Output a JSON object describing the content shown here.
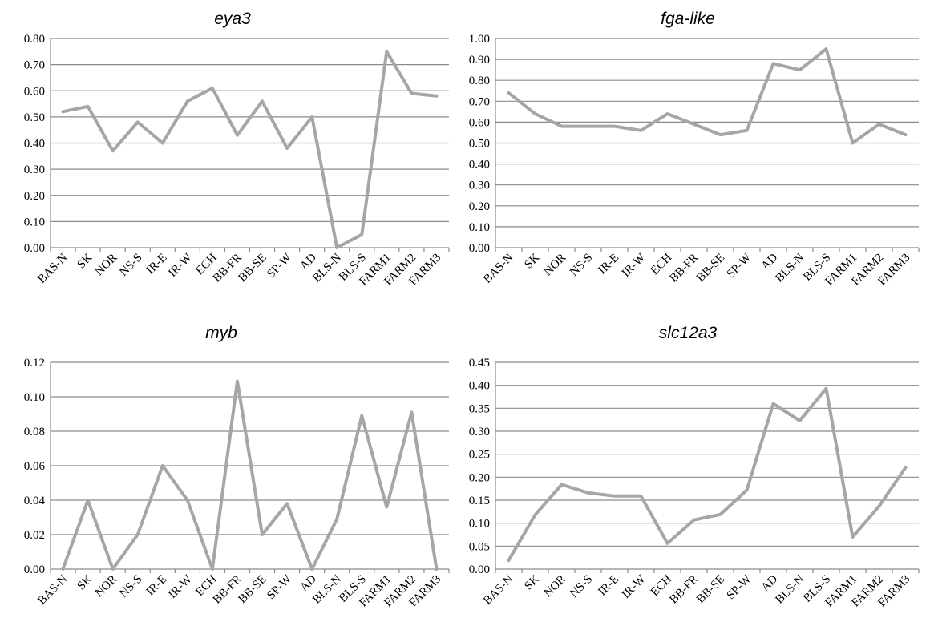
{
  "categories": [
    "BAS-N",
    "SK",
    "NOR",
    "NS-S",
    "IR-E",
    "IR-W",
    "ECH",
    "BB-FR",
    "BB-SE",
    "SP-W",
    "AD",
    "BLS-N",
    "BLS-S",
    "FARM1",
    "FARM2",
    "FARM3"
  ],
  "line_color": "#a6a6a6",
  "chart_data": [
    {
      "type": "line",
      "title": "eya3",
      "categories": [
        "BAS-N",
        "SK",
        "NOR",
        "NS-S",
        "IR-E",
        "IR-W",
        "ECH",
        "BB-FR",
        "BB-SE",
        "SP-W",
        "AD",
        "BLS-N",
        "BLS-S",
        "FARM1",
        "FARM2",
        "FARM3"
      ],
      "values": [
        0.52,
        0.54,
        0.37,
        0.48,
        0.4,
        0.56,
        0.61,
        0.43,
        0.56,
        0.38,
        0.5,
        0.0,
        0.05,
        0.75,
        0.59,
        0.58
      ],
      "ylim": [
        0,
        0.8
      ],
      "yticks": [
        "0.00",
        "0.10",
        "0.20",
        "0.30",
        "0.40",
        "0.50",
        "0.60",
        "0.70",
        "0.80"
      ],
      "grid": true
    },
    {
      "type": "line",
      "title": "fga-like",
      "categories": [
        "BAS-N",
        "SK",
        "NOR",
        "NS-S",
        "IR-E",
        "IR-W",
        "ECH",
        "BB-FR",
        "BB-SE",
        "SP-W",
        "AD",
        "BLS-N",
        "BLS-S",
        "FARM1",
        "FARM2",
        "FARM3"
      ],
      "values": [
        0.74,
        0.64,
        0.58,
        0.58,
        0.58,
        0.56,
        0.64,
        0.59,
        0.54,
        0.56,
        0.88,
        0.85,
        0.95,
        0.5,
        0.59,
        0.54
      ],
      "ylim": [
        0,
        1.0
      ],
      "yticks": [
        "0.00",
        "0.10",
        "0.20",
        "0.30",
        "0.40",
        "0.50",
        "0.60",
        "0.70",
        "0.80",
        "0.90",
        "1.00"
      ],
      "grid": true
    },
    {
      "type": "line",
      "title": "myb",
      "categories": [
        "BAS-N",
        "SK",
        "NOR",
        "NS-S",
        "IR-E",
        "IR-W",
        "ECH",
        "BB-FR",
        "BB-SE",
        "SP-W",
        "AD",
        "BLS-N",
        "BLS-S",
        "FARM1",
        "FARM2",
        "FARM3"
      ],
      "values": [
        0.0,
        0.04,
        0.0,
        0.02,
        0.06,
        0.04,
        0.0,
        0.109,
        0.02,
        0.038,
        0.0,
        0.029,
        0.089,
        0.036,
        0.091,
        0.0
      ],
      "ylim": [
        0,
        0.12
      ],
      "yticks": [
        "0.00",
        "0.02",
        "0.04",
        "0.06",
        "0.08",
        "0.10",
        "0.12"
      ],
      "grid": true
    },
    {
      "type": "line",
      "title": "slc12a3",
      "categories": [
        "BAS-N",
        "SK",
        "NOR",
        "NS-S",
        "IR-E",
        "IR-W",
        "ECH",
        "BB-FR",
        "BB-SE",
        "SP-W",
        "AD",
        "BLS-N",
        "BLS-S",
        "FARM1",
        "FARM2",
        "FARM3"
      ],
      "values": [
        0.019,
        0.118,
        0.184,
        0.166,
        0.159,
        0.159,
        0.056,
        0.107,
        0.119,
        0.172,
        0.36,
        0.323,
        0.393,
        0.07,
        0.137,
        0.221
      ],
      "ylim": [
        0,
        0.45
      ],
      "yticks": [
        "0.00",
        "0.05",
        "0.10",
        "0.15",
        "0.20",
        "0.25",
        "0.30",
        "0.35",
        "0.40",
        "0.45"
      ],
      "grid": true
    }
  ]
}
